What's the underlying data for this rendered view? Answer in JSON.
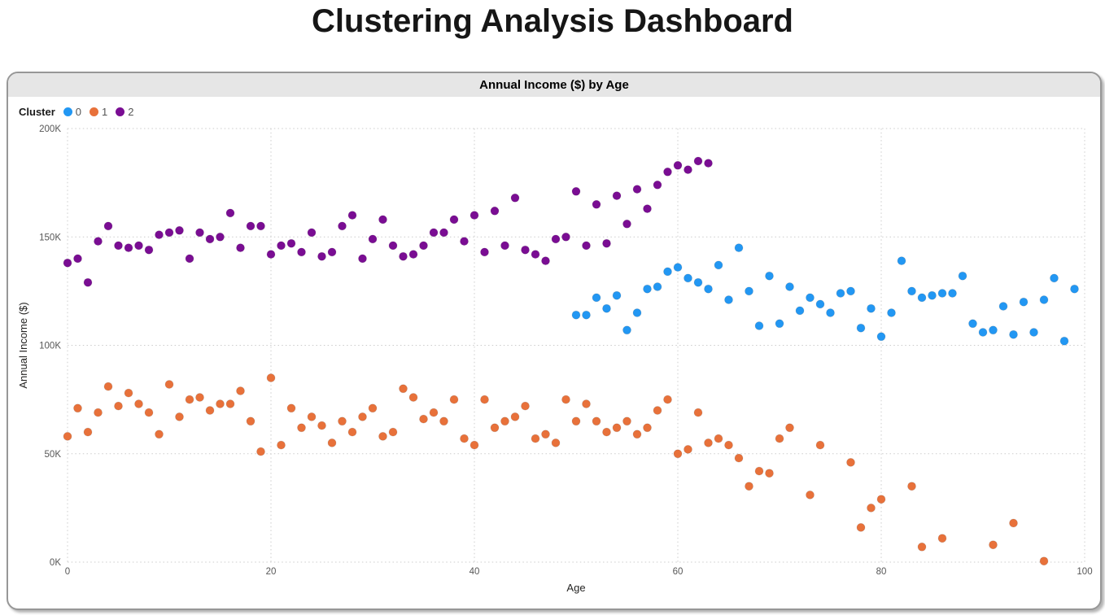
{
  "title": "Clustering Analysis Dashboard",
  "card": {
    "title": "Annual Income ($) by Age"
  },
  "legend": {
    "label": "Cluster"
  },
  "chart_data": {
    "type": "scatter",
    "title": "Annual Income ($) by Age",
    "xlabel": "Age",
    "ylabel": "Annual Income ($)",
    "xlim": [
      0,
      100
    ],
    "ylim_k": [
      0,
      200
    ],
    "x_ticks": [
      0,
      20,
      40,
      60,
      80,
      100
    ],
    "y_ticks_k": [
      0,
      50,
      100,
      150,
      200
    ],
    "y_tick_labels": [
      "0K",
      "50K",
      "100K",
      "150K",
      "200K"
    ],
    "grid": "dotted",
    "legend_position": "top-left",
    "income_units": "thousands of $",
    "series": [
      {
        "name": "0",
        "color": "#2297F3",
        "points": [
          [
            50,
            114
          ],
          [
            51,
            114
          ],
          [
            52,
            122
          ],
          [
            53,
            117
          ],
          [
            54,
            123
          ],
          [
            55,
            107
          ],
          [
            56,
            115
          ],
          [
            57,
            126
          ],
          [
            58,
            127
          ],
          [
            59,
            134
          ],
          [
            60,
            136
          ],
          [
            61,
            131
          ],
          [
            62,
            129
          ],
          [
            63,
            126
          ],
          [
            64,
            137
          ],
          [
            65,
            121
          ],
          [
            66,
            145
          ],
          [
            67,
            125
          ],
          [
            68,
            109
          ],
          [
            69,
            132
          ],
          [
            70,
            110
          ],
          [
            71,
            127
          ],
          [
            72,
            116
          ],
          [
            73,
            122
          ],
          [
            74,
            119
          ],
          [
            75,
            115
          ],
          [
            76,
            124
          ],
          [
            77,
            125
          ],
          [
            78,
            108
          ],
          [
            79,
            117
          ],
          [
            80,
            104
          ],
          [
            81,
            115
          ],
          [
            82,
            139
          ],
          [
            83,
            125
          ],
          [
            84,
            122
          ],
          [
            85,
            123
          ],
          [
            86,
            124
          ],
          [
            87,
            124
          ],
          [
            88,
            132
          ],
          [
            89,
            110
          ],
          [
            90,
            106
          ],
          [
            91,
            107
          ],
          [
            92,
            118
          ],
          [
            93,
            105
          ],
          [
            94,
            120
          ],
          [
            95,
            106
          ],
          [
            96,
            121
          ],
          [
            97,
            131
          ],
          [
            98,
            102
          ],
          [
            99,
            126
          ]
        ]
      },
      {
        "name": "1",
        "color": "#E8713A",
        "points": [
          [
            0,
            58
          ],
          [
            1,
            71
          ],
          [
            2,
            60
          ],
          [
            3,
            69
          ],
          [
            4,
            81
          ],
          [
            5,
            72
          ],
          [
            6,
            78
          ],
          [
            7,
            73
          ],
          [
            8,
            69
          ],
          [
            9,
            59
          ],
          [
            10,
            82
          ],
          [
            11,
            67
          ],
          [
            12,
            75
          ],
          [
            13,
            76
          ],
          [
            14,
            70
          ],
          [
            15,
            73
          ],
          [
            16,
            73
          ],
          [
            17,
            79
          ],
          [
            18,
            65
          ],
          [
            19,
            51
          ],
          [
            20,
            85
          ],
          [
            21,
            54
          ],
          [
            22,
            71
          ],
          [
            23,
            62
          ],
          [
            24,
            67
          ],
          [
            25,
            63
          ],
          [
            26,
            55
          ],
          [
            27,
            65
          ],
          [
            28,
            60
          ],
          [
            29,
            67
          ],
          [
            30,
            71
          ],
          [
            31,
            58
          ],
          [
            32,
            60
          ],
          [
            33,
            80
          ],
          [
            34,
            76
          ],
          [
            35,
            66
          ],
          [
            36,
            69
          ],
          [
            37,
            65
          ],
          [
            38,
            75
          ],
          [
            39,
            57
          ],
          [
            40,
            54
          ],
          [
            41,
            75
          ],
          [
            42,
            62
          ],
          [
            43,
            65
          ],
          [
            44,
            67
          ],
          [
            45,
            72
          ],
          [
            46,
            57
          ],
          [
            47,
            59
          ],
          [
            48,
            55
          ],
          [
            49,
            75
          ],
          [
            50,
            65
          ],
          [
            51,
            73
          ],
          [
            52,
            65
          ],
          [
            53,
            60
          ],
          [
            54,
            62
          ],
          [
            55,
            65
          ],
          [
            56,
            59
          ],
          [
            57,
            62
          ],
          [
            58,
            70
          ],
          [
            59,
            75
          ],
          [
            60,
            50
          ],
          [
            61,
            52
          ],
          [
            62,
            69
          ],
          [
            63,
            55
          ],
          [
            64,
            57
          ],
          [
            65,
            54
          ],
          [
            66,
            48
          ],
          [
            67,
            35
          ],
          [
            68,
            42
          ],
          [
            69,
            41
          ],
          [
            70,
            57
          ],
          [
            71,
            62
          ],
          [
            73,
            31
          ],
          [
            74,
            54
          ],
          [
            77,
            46
          ],
          [
            78,
            16
          ],
          [
            79,
            25
          ],
          [
            80,
            29
          ],
          [
            83,
            35
          ],
          [
            84,
            7
          ],
          [
            86,
            11
          ],
          [
            91,
            8
          ],
          [
            93,
            18
          ],
          [
            96,
            0.5
          ]
        ]
      },
      {
        "name": "2",
        "color": "#7A0D93",
        "points": [
          [
            0,
            138
          ],
          [
            1,
            140
          ],
          [
            2,
            129
          ],
          [
            3,
            148
          ],
          [
            4,
            155
          ],
          [
            5,
            146
          ],
          [
            6,
            145
          ],
          [
            7,
            146
          ],
          [
            8,
            144
          ],
          [
            9,
            151
          ],
          [
            10,
            152
          ],
          [
            11,
            153
          ],
          [
            12,
            140
          ],
          [
            13,
            152
          ],
          [
            14,
            149
          ],
          [
            15,
            150
          ],
          [
            16,
            161
          ],
          [
            17,
            145
          ],
          [
            18,
            155
          ],
          [
            19,
            155
          ],
          [
            20,
            142
          ],
          [
            21,
            146
          ],
          [
            22,
            147
          ],
          [
            23,
            143
          ],
          [
            24,
            152
          ],
          [
            25,
            141
          ],
          [
            26,
            143
          ],
          [
            27,
            155
          ],
          [
            28,
            160
          ],
          [
            29,
            140
          ],
          [
            30,
            149
          ],
          [
            31,
            158
          ],
          [
            32,
            146
          ],
          [
            33,
            141
          ],
          [
            34,
            142
          ],
          [
            35,
            146
          ],
          [
            36,
            152
          ],
          [
            37,
            152
          ],
          [
            38,
            158
          ],
          [
            39,
            148
          ],
          [
            40,
            160
          ],
          [
            41,
            143
          ],
          [
            42,
            162
          ],
          [
            43,
            146
          ],
          [
            44,
            168
          ],
          [
            45,
            144
          ],
          [
            46,
            142
          ],
          [
            47,
            139
          ],
          [
            48,
            149
          ],
          [
            49,
            150
          ],
          [
            50,
            171
          ],
          [
            51,
            146
          ],
          [
            52,
            165
          ],
          [
            53,
            147
          ],
          [
            54,
            169
          ],
          [
            55,
            156
          ],
          [
            56,
            172
          ],
          [
            57,
            163
          ],
          [
            58,
            174
          ],
          [
            59,
            180
          ],
          [
            60,
            183
          ],
          [
            61,
            181
          ],
          [
            62,
            185
          ],
          [
            63,
            184
          ]
        ]
      }
    ]
  }
}
